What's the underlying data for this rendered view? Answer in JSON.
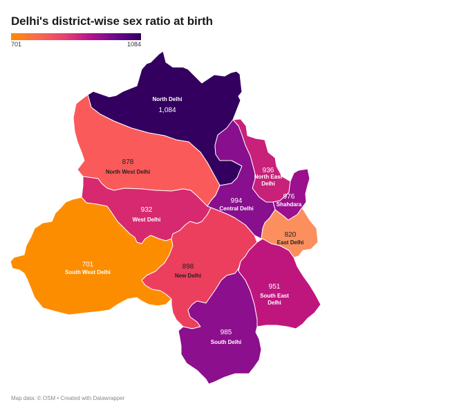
{
  "title": "Delhi's district-wise sex ratio at birth",
  "legend": {
    "min_label": "701",
    "max_label": "1084",
    "min_value": 701,
    "max_value": 1084,
    "colors": [
      "#fd8d00",
      "#f96a4e",
      "#e8436e",
      "#b8158b",
      "#6d0a8a",
      "#33005f"
    ]
  },
  "districts": [
    {
      "id": "north-delhi",
      "name": "North Delhi",
      "value_label": "1,084",
      "value": 1084,
      "color": "#33005f",
      "text_color": "#ffffff"
    },
    {
      "id": "north-west-delhi",
      "name": "North West Delhi",
      "value_label": "878",
      "value": 878,
      "color": "#fb5a5a",
      "text_color": "#222222"
    },
    {
      "id": "north-east-delhi",
      "name": "North East Delhi",
      "value_label": "936",
      "value": 936,
      "color": "#c8217a",
      "text_color": "#ffffff"
    },
    {
      "id": "shahdara",
      "name": "Shahdara",
      "value_label": "976",
      "value": 976,
      "color": "#9c0f8d",
      "text_color": "#ffffff"
    },
    {
      "id": "central-delhi",
      "name": "Central Delhi",
      "value_label": "994",
      "value": 994,
      "color": "#880f8d",
      "text_color": "#ffffff"
    },
    {
      "id": "west-delhi",
      "name": "West Delhi",
      "value_label": "932",
      "value": 932,
      "color": "#d7296f",
      "text_color": "#ffffff"
    },
    {
      "id": "east-delhi",
      "name": "East Delhi",
      "value_label": "820",
      "value": 820,
      "color": "#fb8f5e",
      "text_color": "#222222"
    },
    {
      "id": "south-west-delhi",
      "name": "South West Delhi",
      "value_label": "701",
      "value": 701,
      "color": "#fd8d00",
      "text_color": "#ffffff"
    },
    {
      "id": "new-delhi",
      "name": "New Delhi",
      "value_label": "898",
      "value": 898,
      "color": "#ec3f5e",
      "text_color": "#222222"
    },
    {
      "id": "south-east-delhi",
      "name": "South East Delhi",
      "value_label": "951",
      "value": 951,
      "color": "#bf167e",
      "text_color": "#ffffff"
    },
    {
      "id": "south-delhi",
      "name": "South Delhi",
      "value_label": "985",
      "value": 985,
      "color": "#8c0f8d",
      "text_color": "#ffffff"
    }
  ],
  "footer": "Map data: © OSM • Created with Datawrapper"
}
